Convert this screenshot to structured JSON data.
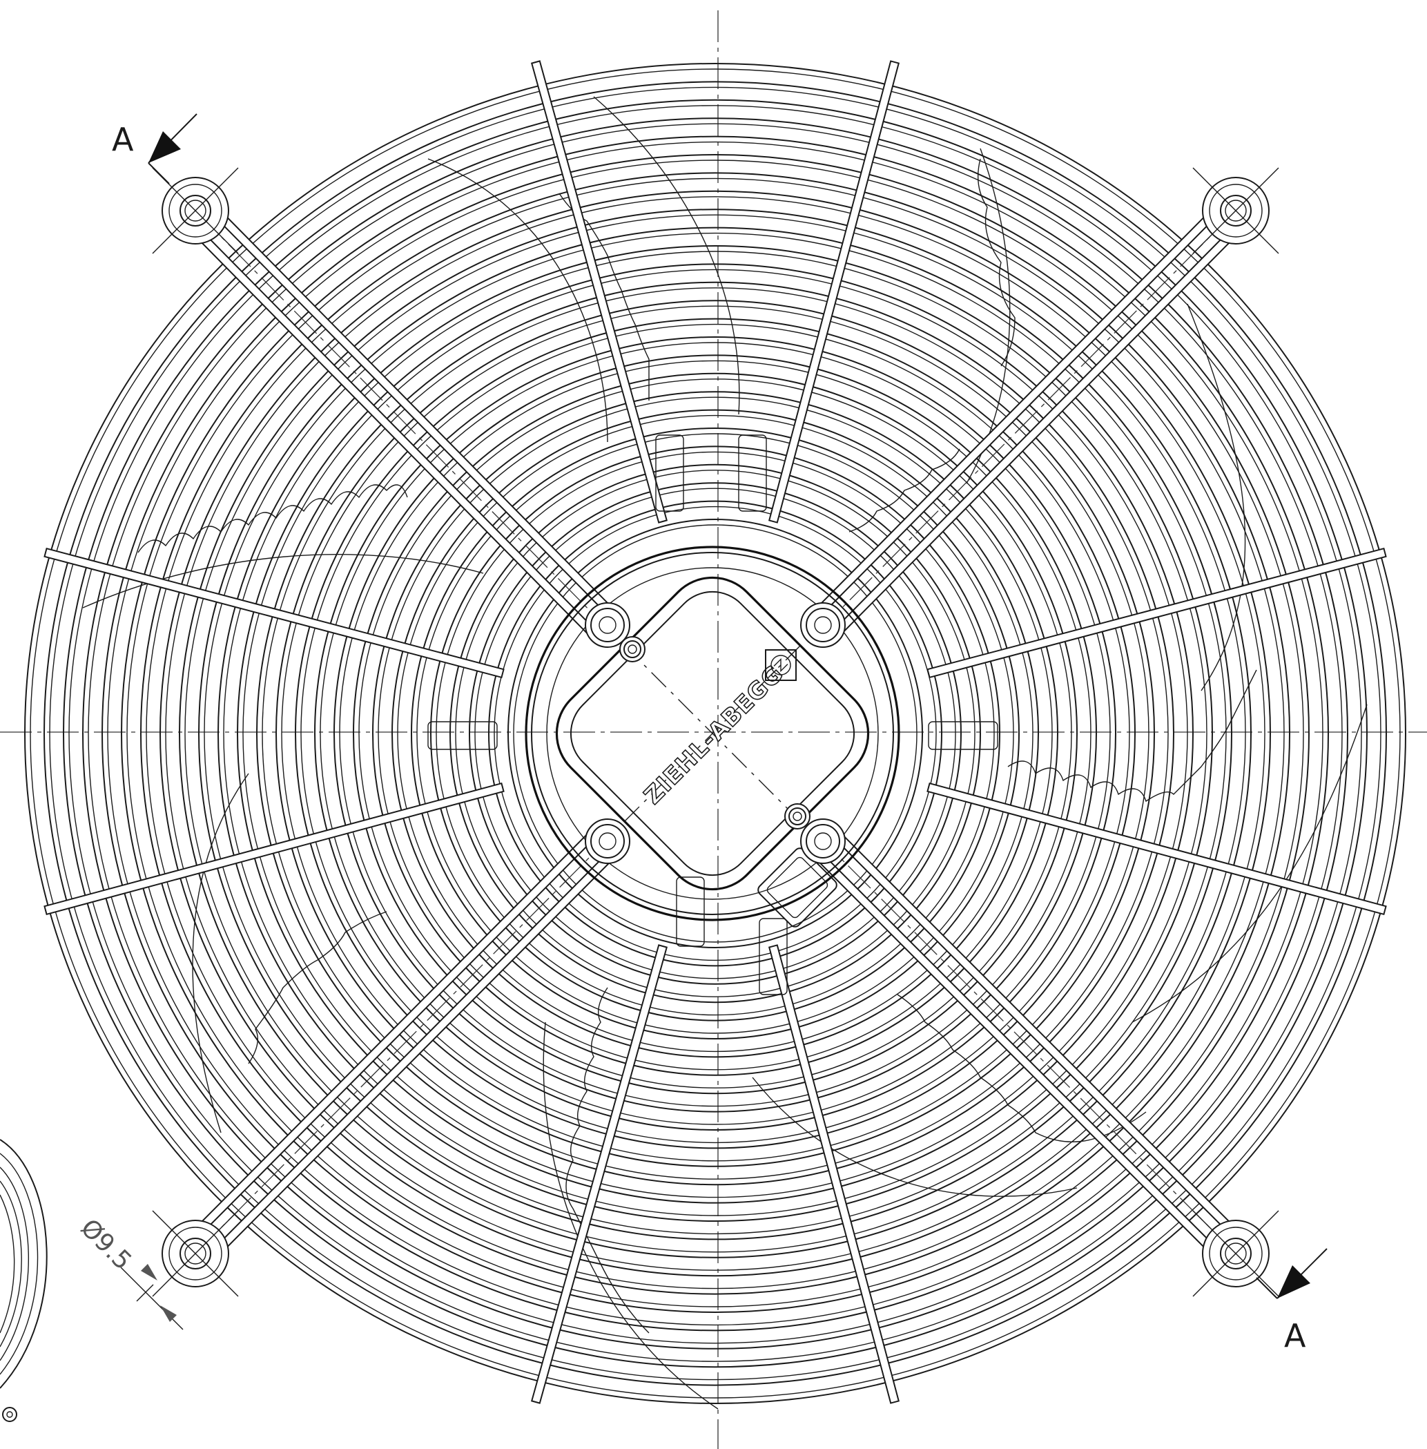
{
  "drawing": {
    "section_label_top": "A",
    "section_label_bottom": "A",
    "hole_dimension": "Ø9.5",
    "brand": "ZIEHL-ABEGG",
    "guard_rings": 26,
    "radial_struts": 8
  }
}
